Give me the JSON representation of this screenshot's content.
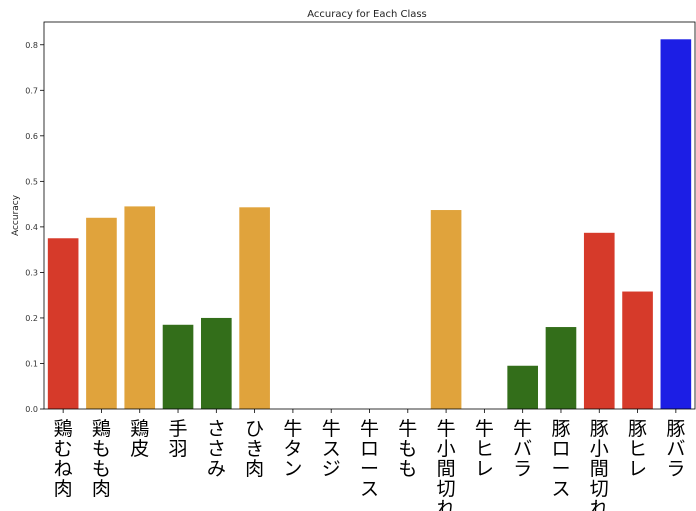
{
  "chart_data": {
    "type": "bar",
    "title": "Accuracy for Each Class",
    "xlabel": "",
    "ylabel": "Accuracy",
    "ylim": [
      0,
      0.85
    ],
    "yticks": [
      "0.0",
      "0.1",
      "0.2",
      "0.3",
      "0.4",
      "0.5",
      "0.6",
      "0.7",
      "0.8"
    ],
    "grid": false,
    "categories": [
      "鶏むね肉",
      "鶏もも肉",
      "鶏皮",
      "手羽",
      "ささみ",
      "ひき肉",
      "牛タン",
      "牛スジ",
      "牛ロース",
      "牛もも",
      "牛小間切れ",
      "牛ヒレ",
      "牛バラ",
      "豚ロース",
      "豚小間切れ",
      "豚ヒレ",
      "豚バラ"
    ],
    "values": [
      0.375,
      0.42,
      0.445,
      0.185,
      0.2,
      0.443,
      0.0,
      0.0,
      0.0,
      0.0,
      0.437,
      0.0,
      0.095,
      0.18,
      0.387,
      0.258,
      0.812
    ],
    "colors": {
      "red": "#d63a2a",
      "orange": "#e0a33c",
      "green": "#336e1a",
      "blue": "#1c1ee5"
    },
    "bar_colors": [
      "red",
      "orange",
      "orange",
      "green",
      "green",
      "orange",
      "orange",
      "orange",
      "orange",
      "orange",
      "orange",
      "orange",
      "green",
      "green",
      "red",
      "red",
      "blue"
    ]
  }
}
